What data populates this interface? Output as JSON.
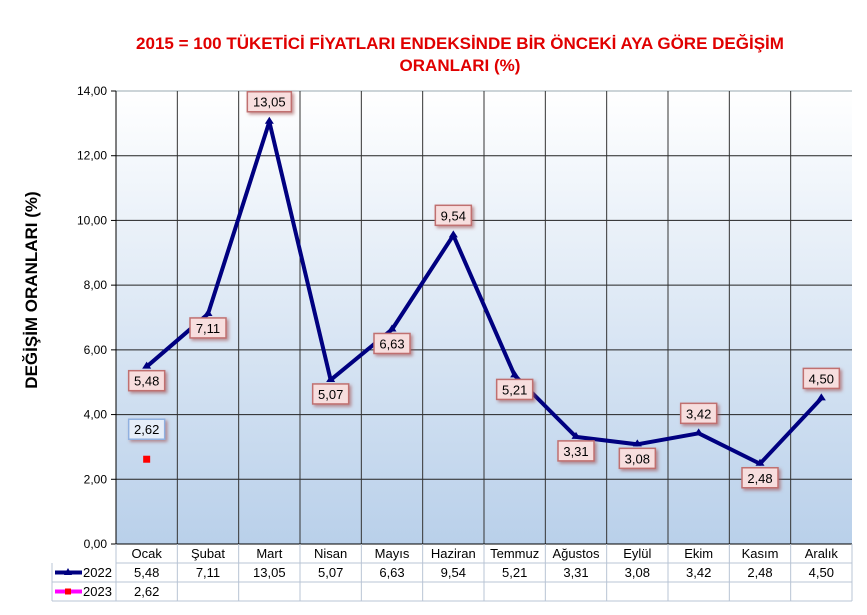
{
  "chart_data": {
    "type": "line",
    "title": "2015 = 100 TÜKETİCİ FİYATLARI ENDEKSİNDE BİR ÖNCEKİ AYA GÖRE DEĞİŞİM ORANLARI (%)",
    "ylabel": "DEĞİŞİM ORANLARI (%)",
    "xlabel": "",
    "ylim": [
      0,
      14
    ],
    "yticks": [
      "0,00",
      "2,00",
      "4,00",
      "6,00",
      "8,00",
      "10,00",
      "12,00",
      "14,00"
    ],
    "grid": true,
    "legend": "data-table-bottom",
    "categories": [
      "Ocak",
      "Şubat",
      "Mart",
      "Nisan",
      "Mayıs",
      "Haziran",
      "Temmuz",
      "Ağustos",
      "Eylül",
      "Ekim",
      "Kasım",
      "Aralık"
    ],
    "series": [
      {
        "name": "2022",
        "color": "#000080",
        "marker": "triangle",
        "values": [
          5.48,
          7.11,
          13.05,
          5.07,
          6.63,
          9.54,
          5.21,
          3.31,
          3.08,
          3.42,
          2.48,
          4.5
        ],
        "labels": [
          "5,48",
          "7,11",
          "13,05",
          "5,07",
          "6,63",
          "9,54",
          "5,21",
          "3,31",
          "3,08",
          "3,42",
          "2,48",
          "4,50"
        ]
      },
      {
        "name": "2023",
        "color": "#ff00ff",
        "marker_color": "#ff0000",
        "marker": "square",
        "values": [
          2.62,
          null,
          null,
          null,
          null,
          null,
          null,
          null,
          null,
          null,
          null,
          null
        ],
        "labels": [
          "2,62",
          "",
          "",
          "",
          "",
          "",
          "",
          "",
          "",
          "",
          "",
          ""
        ]
      }
    ]
  }
}
